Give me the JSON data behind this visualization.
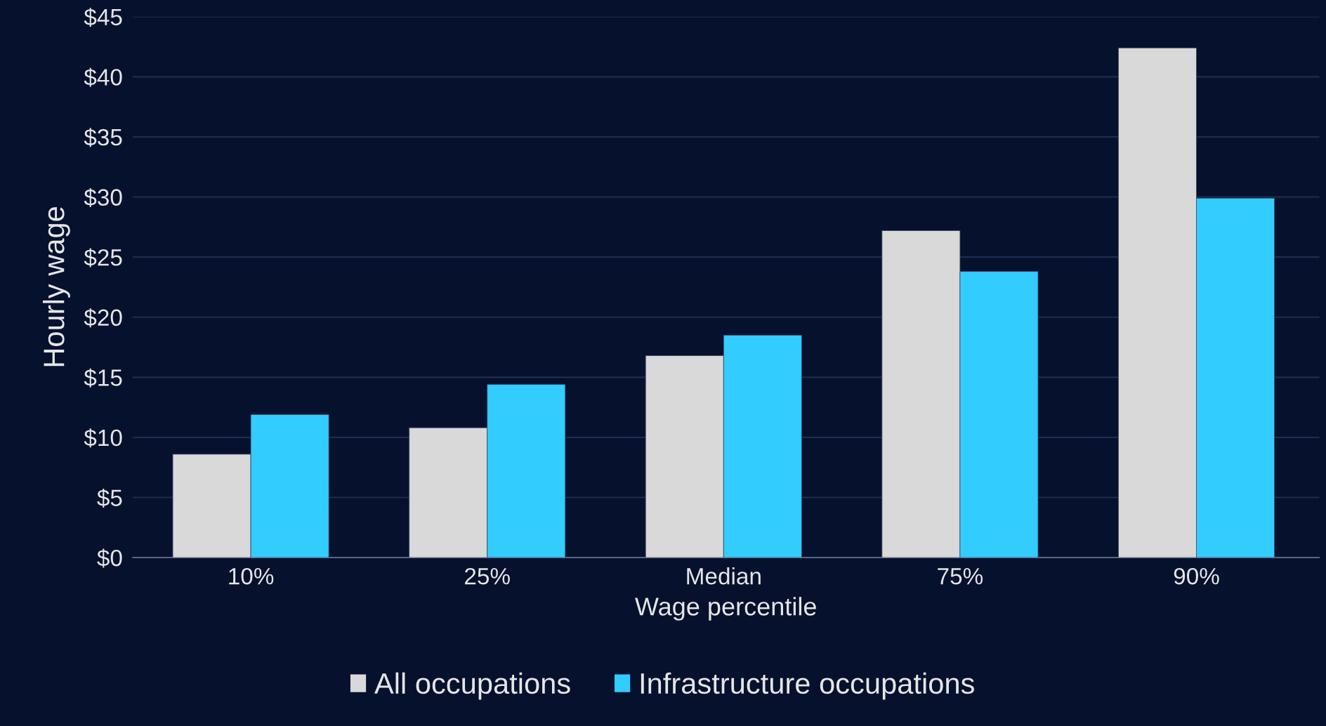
{
  "chart_data": {
    "type": "bar",
    "xlabel": "Wage percentile",
    "ylabel": "Hourly wage",
    "categories": [
      "10%",
      "25%",
      "Median",
      "75%",
      "90%"
    ],
    "series": [
      {
        "name": "All occupations",
        "color": "#d9d9d9",
        "values": [
          8.6,
          10.8,
          16.8,
          27.2,
          42.4
        ]
      },
      {
        "name": "Infrastructure occupations",
        "color": "#33ccff",
        "values": [
          11.9,
          14.4,
          18.5,
          23.8,
          29.9
        ]
      }
    ],
    "ylim": [
      0,
      45
    ],
    "yticks": [
      {
        "value": 0,
        "label": "$0"
      },
      {
        "value": 5,
        "label": "$5"
      },
      {
        "value": 10,
        "label": "$10"
      },
      {
        "value": 15,
        "label": "$15"
      },
      {
        "value": 20,
        "label": "$20"
      },
      {
        "value": 25,
        "label": "$25"
      },
      {
        "value": 30,
        "label": "$30"
      },
      {
        "value": 35,
        "label": "$35"
      },
      {
        "value": 40,
        "label": "$40"
      },
      {
        "value": 45,
        "label": "$45"
      }
    ],
    "grid": "y",
    "legend": "bottom"
  }
}
